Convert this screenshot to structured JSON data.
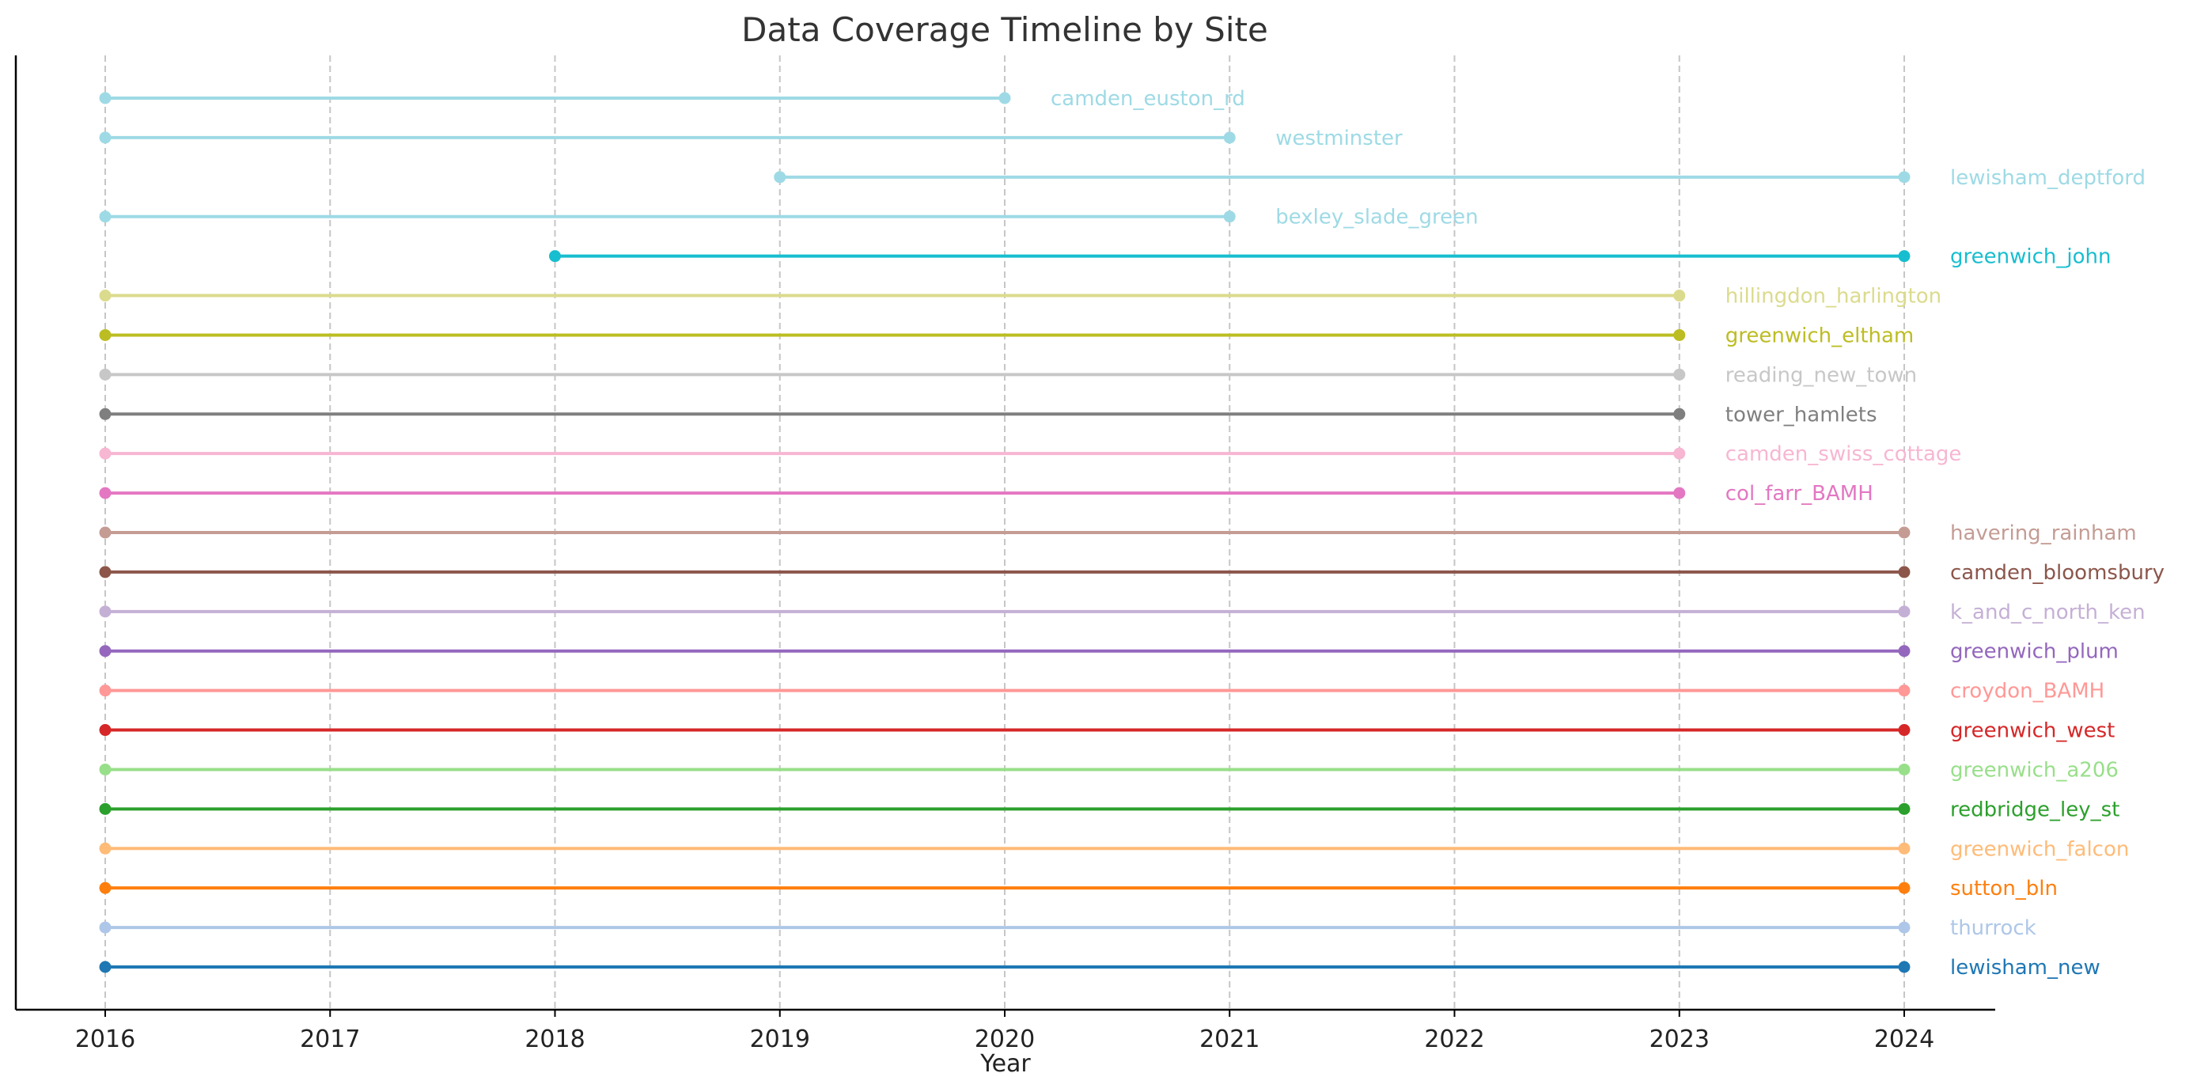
{
  "chart_data": {
    "type": "timeline",
    "title": "Data Coverage Timeline by Site",
    "xlabel": "Year",
    "ylabel": "",
    "xlim": [
      2015.6,
      2024.4
    ],
    "x_ticks": [
      2016,
      2017,
      2018,
      2019,
      2020,
      2021,
      2022,
      2023,
      2024
    ],
    "grid": "vertical dashed",
    "series": [
      {
        "name": "camden_euston_rd",
        "start": 2016,
        "end": 2020,
        "color": "#9edae5"
      },
      {
        "name": "westminster",
        "start": 2016,
        "end": 2021,
        "color": "#9edae5"
      },
      {
        "name": "lewisham_deptford",
        "start": 2019,
        "end": 2024,
        "color": "#9edae5"
      },
      {
        "name": "bexley_slade_green",
        "start": 2016,
        "end": 2021,
        "color": "#9edae5"
      },
      {
        "name": "greenwich_john",
        "start": 2018,
        "end": 2024,
        "color": "#17becf"
      },
      {
        "name": "hillingdon_harlington",
        "start": 2016,
        "end": 2023,
        "color": "#dbdb8d"
      },
      {
        "name": "greenwich_eltham",
        "start": 2016,
        "end": 2023,
        "color": "#bcbd22"
      },
      {
        "name": "reading_new_town",
        "start": 2016,
        "end": 2023,
        "color": "#c7c7c7"
      },
      {
        "name": "tower_hamlets",
        "start": 2016,
        "end": 2023,
        "color": "#7f7f7f"
      },
      {
        "name": "camden_swiss_cottage",
        "start": 2016,
        "end": 2023,
        "color": "#f7b6d2"
      },
      {
        "name": "col_farr_BAMH",
        "start": 2016,
        "end": 2023,
        "color": "#e377c2"
      },
      {
        "name": "havering_rainham",
        "start": 2016,
        "end": 2024,
        "color": "#c49c94"
      },
      {
        "name": "camden_bloomsbury",
        "start": 2016,
        "end": 2024,
        "color": "#8c564b"
      },
      {
        "name": "k_and_c_north_ken",
        "start": 2016,
        "end": 2024,
        "color": "#c5b0d5"
      },
      {
        "name": "greenwich_plum",
        "start": 2016,
        "end": 2024,
        "color": "#9467bd"
      },
      {
        "name": "croydon_BAMH",
        "start": 2016,
        "end": 2024,
        "color": "#ff9896"
      },
      {
        "name": "greenwich_west",
        "start": 2016,
        "end": 2024,
        "color": "#d62728"
      },
      {
        "name": "greenwich_a206",
        "start": 2016,
        "end": 2024,
        "color": "#98df8a"
      },
      {
        "name": "redbridge_ley_st",
        "start": 2016,
        "end": 2024,
        "color": "#2ca02c"
      },
      {
        "name": "greenwich_falcon",
        "start": 2016,
        "end": 2024,
        "color": "#ffbb78"
      },
      {
        "name": "sutton_bln",
        "start": 2016,
        "end": 2024,
        "color": "#ff7f0e"
      },
      {
        "name": "thurrock",
        "start": 2016,
        "end": 2024,
        "color": "#aec7e8"
      },
      {
        "name": "lewisham_new",
        "start": 2016,
        "end": 2024,
        "color": "#1f77b4"
      }
    ]
  }
}
